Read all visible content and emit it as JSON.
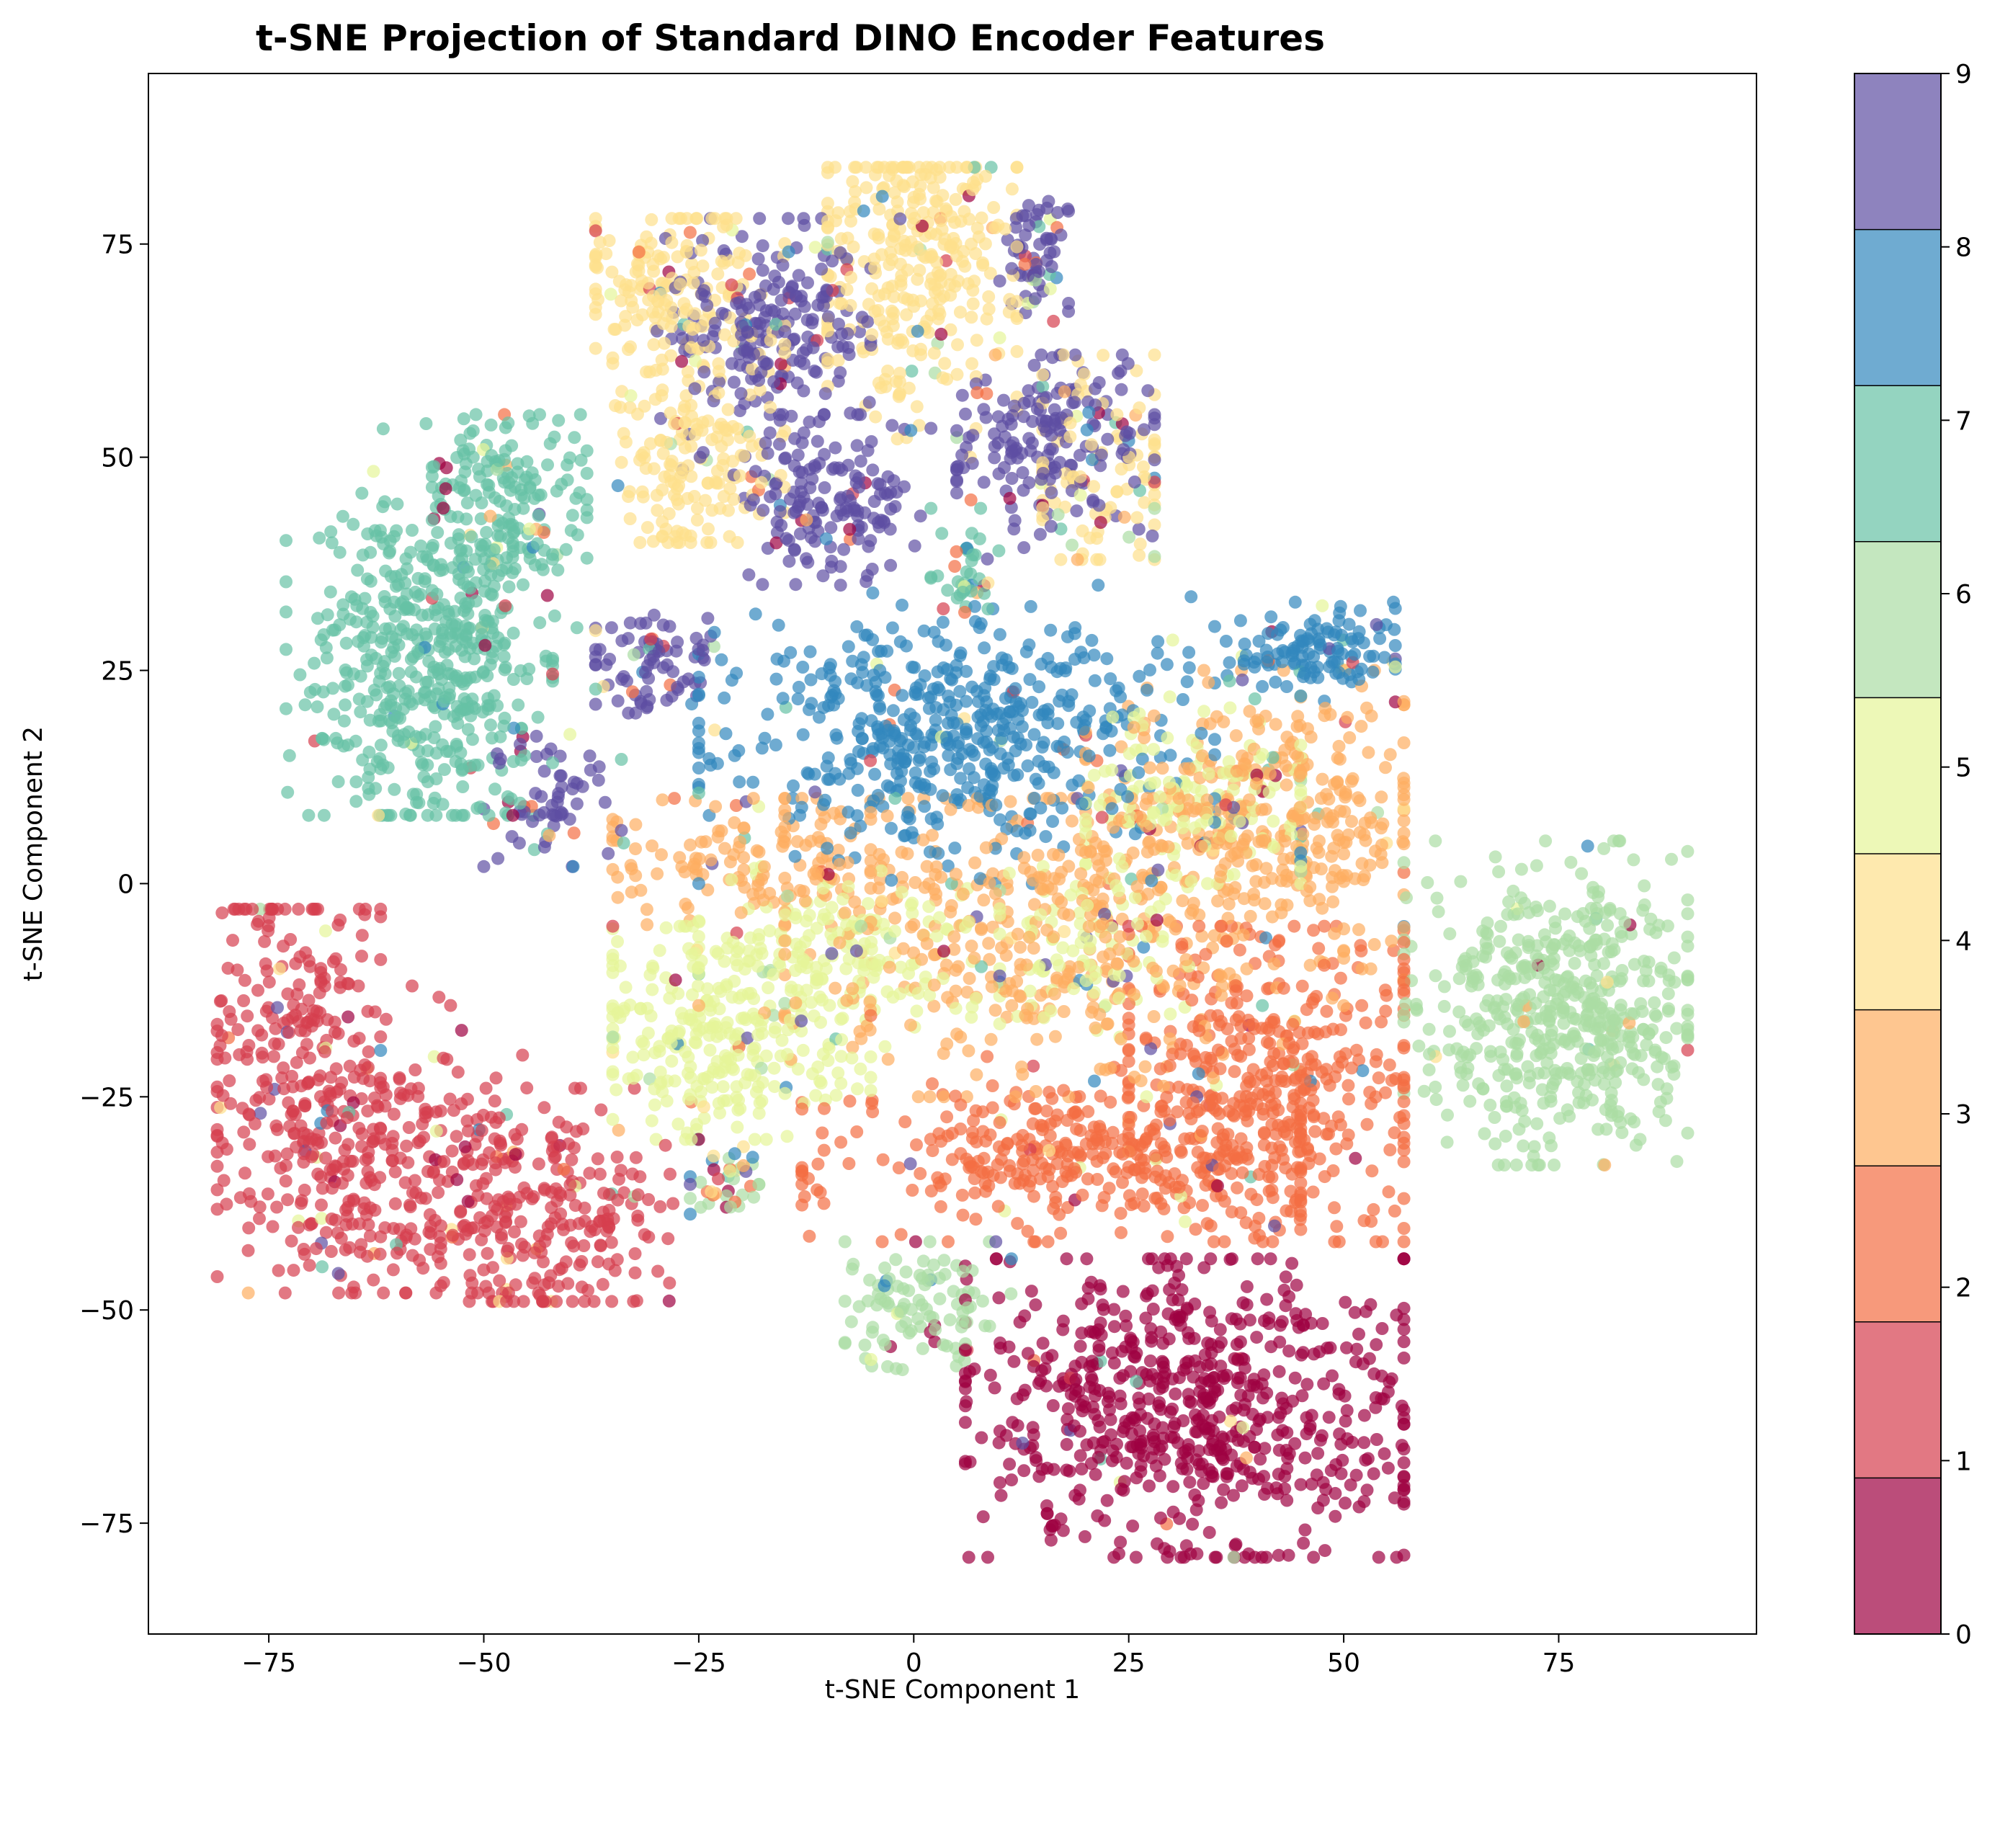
{
  "chart_data": {
    "type": "scatter",
    "title": "t-SNE Projection of Standard DINO Encoder Features",
    "xlabel": "t-SNE Component 1",
    "ylabel": "t-SNE Component 2",
    "xlim": [
      -89,
      98
    ],
    "ylim": [
      -88,
      95
    ],
    "xticks": [
      -75,
      -50,
      -25,
      0,
      25,
      50,
      75
    ],
    "xtick_labels": [
      "−75",
      "−50",
      "−25",
      "0",
      "25",
      "50",
      "75"
    ],
    "yticks": [
      -75,
      -50,
      -25,
      0,
      25,
      50,
      75
    ],
    "ytick_labels": [
      "−75",
      "−50",
      "−25",
      "0",
      "25",
      "50",
      "75"
    ],
    "grid": false,
    "colormap": "Spectral",
    "point_alpha": 0.7,
    "colorbar": {
      "min": 0,
      "max": 9,
      "ticks": [
        0,
        1,
        2,
        3,
        4,
        5,
        6,
        7,
        8,
        9
      ],
      "tick_labels": [
        "0",
        "1",
        "2",
        "3",
        "4",
        "5",
        "6",
        "7",
        "8",
        "9"
      ],
      "colors": [
        "#9e0142",
        "#d53e4f",
        "#f46d43",
        "#fdae61",
        "#fee08b",
        "#e6f598",
        "#abdda4",
        "#66c2a5",
        "#3288bd",
        "#5e4fa2"
      ]
    },
    "classes": [
      {
        "label": 0,
        "color": "#9e0142",
        "clusters": [
          {
            "cx": 32,
            "cy": -62,
            "sx": 13,
            "sy": 9,
            "n": 650,
            "xmin": 6,
            "xmax": 57,
            "ymin": -79,
            "ymax": -44
          }
        ]
      },
      {
        "label": 1,
        "color": "#d53e4f",
        "clusters": [
          {
            "cx": -72,
            "cy": -22,
            "sx": 5,
            "sy": 12,
            "n": 260,
            "xmin": -81,
            "xmax": -62,
            "ymin": -48,
            "ymax": -3
          },
          {
            "cx": -60,
            "cy": -32,
            "sx": 6,
            "sy": 9,
            "n": 200,
            "xmin": -74,
            "xmax": -45,
            "ymin": -48,
            "ymax": -12
          },
          {
            "cx": -43,
            "cy": -38,
            "sx": 7,
            "sy": 7,
            "n": 220,
            "xmin": -55,
            "xmax": -28,
            "ymin": -49,
            "ymax": -24
          }
        ]
      },
      {
        "label": 2,
        "color": "#f46d43",
        "clusters": [
          {
            "cx": 20,
            "cy": -32,
            "sx": 16,
            "sy": 5,
            "n": 360,
            "xmin": -13,
            "xmax": 45,
            "ymin": -42,
            "ymax": -20
          },
          {
            "cx": 42,
            "cy": -22,
            "sx": 9,
            "sy": 9,
            "n": 380,
            "xmin": 25,
            "xmax": 57,
            "ymin": -42,
            "ymax": -5
          }
        ]
      },
      {
        "label": 3,
        "color": "#fdae61",
        "clusters": [
          {
            "cx": 15,
            "cy": -5,
            "sx": 18,
            "sy": 9,
            "n": 420,
            "xmin": -15,
            "xmax": 50,
            "ymin": -25,
            "ymax": 10
          },
          {
            "cx": 40,
            "cy": 8,
            "sx": 10,
            "sy": 7,
            "n": 330,
            "xmin": 20,
            "xmax": 57,
            "ymin": -10,
            "ymax": 25
          },
          {
            "cx": -20,
            "cy": 3,
            "sx": 9,
            "sy": 4,
            "n": 110,
            "xmin": -35,
            "xmax": -5,
            "ymin": -5,
            "ymax": 10
          }
        ]
      },
      {
        "label": 4,
        "color": "#fee08b",
        "clusters": [
          {
            "cx": 0,
            "cy": 72,
            "sx": 6,
            "sy": 9,
            "n": 300,
            "xmin": -10,
            "xmax": 12,
            "ymin": 50,
            "ymax": 84
          },
          {
            "cx": -27,
            "cy": 70,
            "sx": 6,
            "sy": 5,
            "n": 150,
            "xmin": -37,
            "xmax": -15,
            "ymin": 60,
            "ymax": 78
          },
          {
            "cx": -26,
            "cy": 52,
            "sx": 5,
            "sy": 7,
            "n": 170,
            "xmin": -35,
            "xmax": -15,
            "ymin": 40,
            "ymax": 65
          },
          {
            "cx": 22,
            "cy": 48,
            "sx": 5,
            "sy": 7,
            "n": 80,
            "xmin": 15,
            "xmax": 28,
            "ymin": 38,
            "ymax": 62
          }
        ]
      },
      {
        "label": 5,
        "color": "#e6f598",
        "clusters": [
          {
            "cx": -22,
            "cy": -18,
            "sx": 8,
            "sy": 6,
            "n": 260,
            "xmin": -35,
            "xmax": -5,
            "ymin": -30,
            "ymax": -5
          },
          {
            "cx": -8,
            "cy": -8,
            "sx": 9,
            "sy": 5,
            "n": 170,
            "xmin": -25,
            "xmax": 10,
            "ymin": -20,
            "ymax": 2
          },
          {
            "cx": 33,
            "cy": 10,
            "sx": 8,
            "sy": 5,
            "n": 130,
            "xmin": 20,
            "xmax": 45,
            "ymin": 0,
            "ymax": 22
          },
          {
            "cx": 20,
            "cy": -8,
            "sx": 6,
            "sy": 5,
            "n": 80,
            "xmin": 10,
            "xmax": 32,
            "ymin": -18,
            "ymax": 2
          }
        ]
      },
      {
        "label": 6,
        "color": "#abdda4",
        "clusters": [
          {
            "cx": 75,
            "cy": -15,
            "sx": 8,
            "sy": 8,
            "n": 520,
            "xmin": 57,
            "xmax": 90,
            "ymin": -33,
            "ymax": 5
          },
          {
            "cx": 0,
            "cy": -50,
            "sx": 5,
            "sy": 4,
            "n": 90,
            "xmin": -8,
            "xmax": 15,
            "ymin": -57,
            "ymax": -42
          },
          {
            "cx": -22,
            "cy": -35,
            "sx": 3,
            "sy": 2,
            "n": 14,
            "xmin": -26,
            "xmax": -18,
            "ymin": -40,
            "ymax": -30
          }
        ]
      },
      {
        "label": 7,
        "color": "#66c2a5",
        "clusters": [
          {
            "cx": -57,
            "cy": 26,
            "sx": 7,
            "sy": 10,
            "n": 460,
            "xmin": -73,
            "xmax": -42,
            "ymin": 8,
            "ymax": 54
          },
          {
            "cx": -48,
            "cy": 44,
            "sx": 5,
            "sy": 6,
            "n": 170,
            "xmin": -56,
            "xmax": -38,
            "ymin": 30,
            "ymax": 55
          },
          {
            "cx": 6,
            "cy": 37,
            "sx": 2,
            "sy": 3,
            "n": 30,
            "xmin": 2,
            "xmax": 10,
            "ymin": 30,
            "ymax": 44
          }
        ]
      },
      {
        "label": 8,
        "color": "#3288bd",
        "clusters": [
          {
            "cx": 5,
            "cy": 18,
            "sx": 14,
            "sy": 7,
            "n": 500,
            "xmin": -25,
            "xmax": 35,
            "ymin": 0,
            "ymax": 35
          },
          {
            "cx": 45,
            "cy": 27,
            "sx": 6,
            "sy": 2.5,
            "n": 110,
            "xmin": 30,
            "xmax": 56,
            "ymin": 20,
            "ymax": 33
          }
        ]
      },
      {
        "label": 9,
        "color": "#5e4fa2",
        "clusters": [
          {
            "cx": -18,
            "cy": 65,
            "sx": 6,
            "sy": 6,
            "n": 190,
            "xmin": -32,
            "xmax": -5,
            "ymin": 50,
            "ymax": 78
          },
          {
            "cx": -10,
            "cy": 45,
            "sx": 5,
            "sy": 5,
            "n": 140,
            "xmin": -22,
            "xmax": 2,
            "ymin": 35,
            "ymax": 55
          },
          {
            "cx": 15,
            "cy": 52,
            "sx": 6,
            "sy": 5,
            "n": 160,
            "xmin": 5,
            "xmax": 28,
            "ymin": 38,
            "ymax": 62
          },
          {
            "cx": 14,
            "cy": 73,
            "sx": 2,
            "sy": 4,
            "n": 50,
            "xmin": 10,
            "xmax": 18,
            "ymin": 64,
            "ymax": 80
          },
          {
            "cx": -30,
            "cy": 26,
            "sx": 4,
            "sy": 3,
            "n": 70,
            "xmin": -37,
            "xmax": -22,
            "ymin": 20,
            "ymax": 32
          },
          {
            "cx": -42,
            "cy": 10,
            "sx": 4,
            "sy": 4,
            "n": 50,
            "xmin": -50,
            "xmax": -34,
            "ymin": 2,
            "ymax": 20
          }
        ]
      }
    ],
    "scatter_noise_fraction": 0.08
  }
}
